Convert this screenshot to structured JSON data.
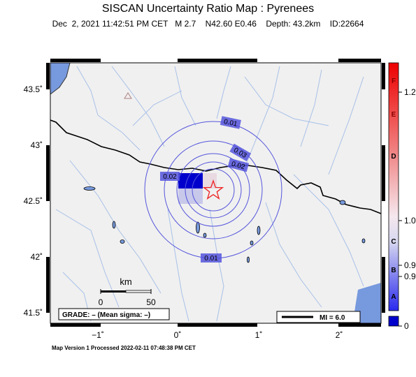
{
  "title": "SISCAN Uncertainty Ratio Map : Pyrenees",
  "subtitle": "Dec  2, 2021 11:42:51 PM CET   M 2.7    N42.60 E0.46    Depth: 43.2km    ID:22664",
  "footer": "Map Version 1 Processed 2022-02-11 07:48:38 PM CET",
  "axes": {
    "lat_ticks": [
      "43.5˚",
      "43˚",
      "42.5˚",
      "42˚",
      "41.5˚"
    ],
    "lon_ticks": [
      "−1˚",
      "0˚",
      "1˚",
      "2˚"
    ]
  },
  "contours": [
    "0.01",
    "0.02",
    "0.03",
    "0.02",
    "0.01"
  ],
  "scale_bar": {
    "title": "km",
    "start": "0",
    "end": "50"
  },
  "grade_box": "GRADE: – (Mean sigma: –)",
  "magnitude_legend": "MI = 6.0",
  "colorbar": {
    "letters": [
      "F",
      "E",
      "D",
      "C",
      "B",
      "A"
    ],
    "values": [
      "1.2",
      "1.0",
      "0.9",
      "0.9",
      "0"
    ]
  },
  "colors": {
    "contour": "#5555dd",
    "epicenter": "#ee2222",
    "land": "#f0f0f0",
    "water": "#7799dd"
  },
  "icons": {
    "epicenter": "star-icon",
    "station": "triangle-icon"
  }
}
